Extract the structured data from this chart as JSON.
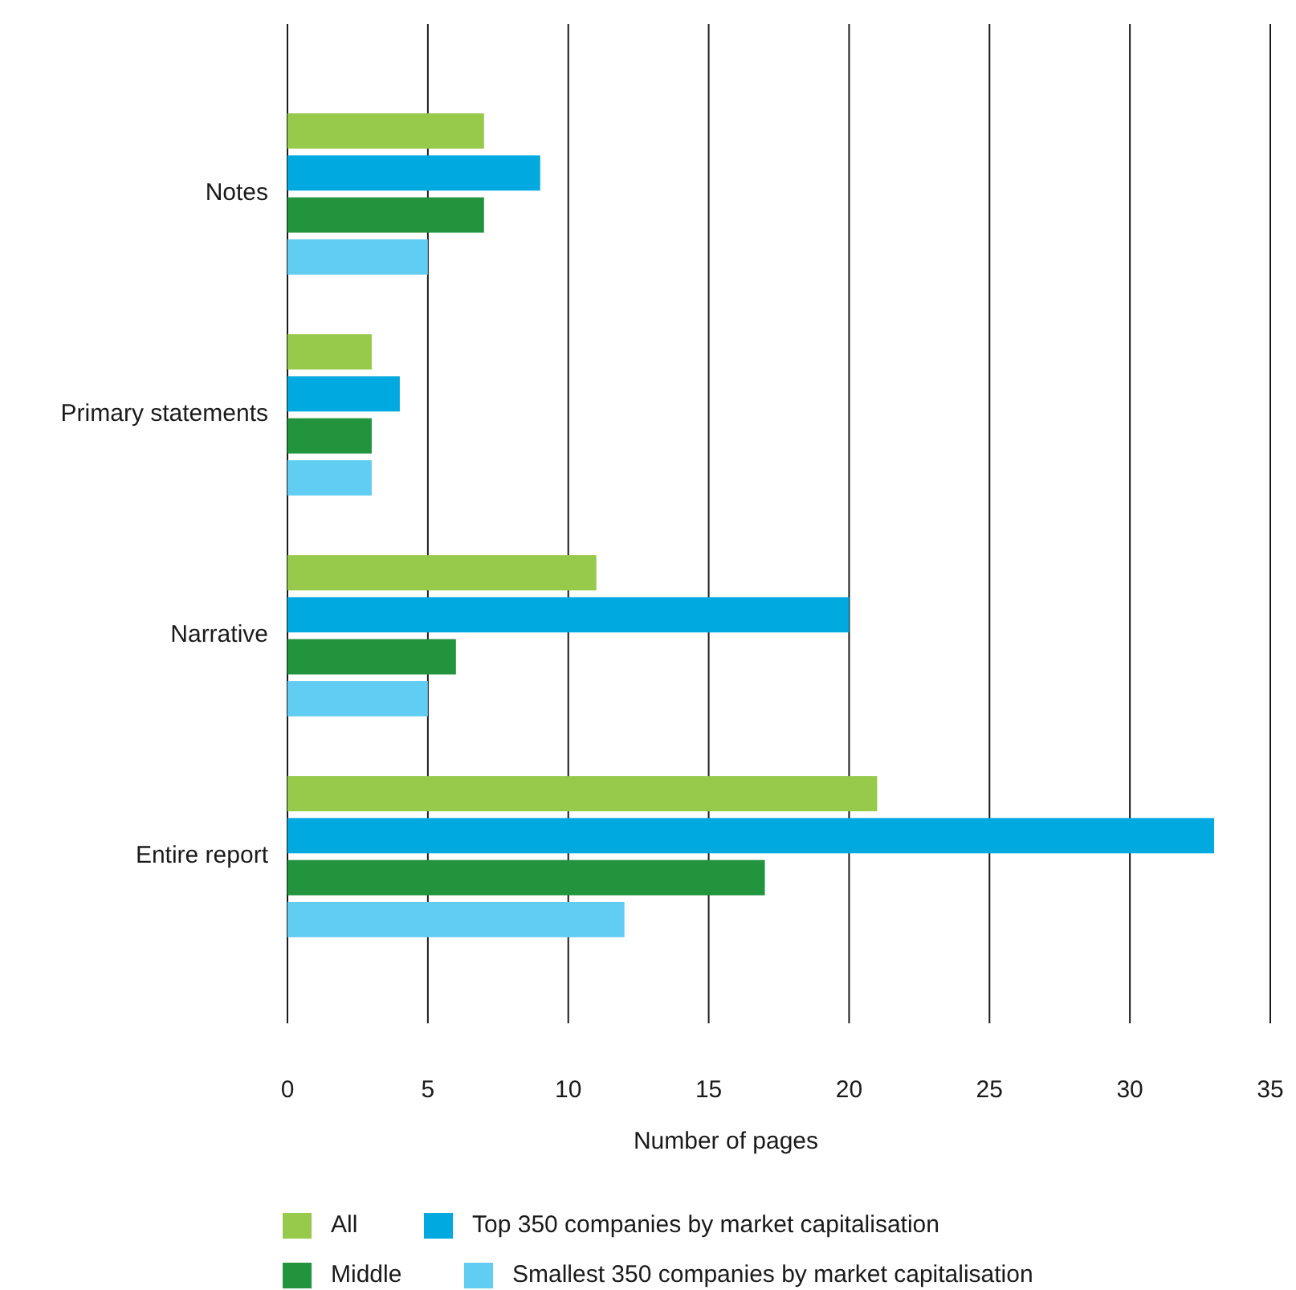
{
  "chart_data": {
    "type": "bar",
    "orientation": "horizontal",
    "xlabel": "Number of pages",
    "categories": [
      "Notes",
      "Primary statements",
      "Narrative",
      "Entire report"
    ],
    "series": [
      {
        "name": "All",
        "color": "#97c94a",
        "values": [
          7,
          3,
          11,
          21
        ]
      },
      {
        "name": "Top 350 companies by market capitalisation",
        "color": "#00a9e0",
        "values": [
          9,
          4,
          20,
          33
        ]
      },
      {
        "name": "Middle",
        "color": "#22943e",
        "values": [
          7,
          3,
          6,
          17
        ]
      },
      {
        "name": "Smallest 350 companies by market capitalisation",
        "color": "#62cdf2",
        "values": [
          5,
          3,
          5,
          12
        ]
      }
    ],
    "xlim": [
      0,
      35
    ],
    "xticks": [
      0,
      5,
      10,
      15,
      20,
      25,
      30,
      35
    ],
    "grid": "x",
    "legend": "bottom"
  }
}
